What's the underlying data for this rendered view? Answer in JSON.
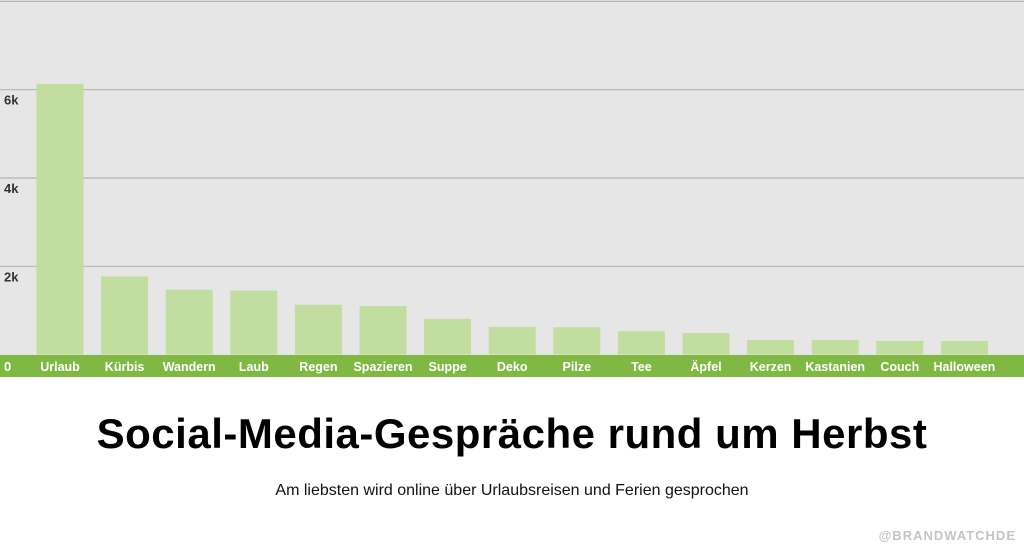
{
  "chart_data": {
    "type": "bar",
    "title": "Social-Media-Gespräche rund um Herbst",
    "subtitle": "Am liebsten wird online über Urlaubsreisen und Ferien gesprochen",
    "xlabel": "",
    "ylabel": "",
    "categories": [
      "Urlaub",
      "Kürbis",
      "Wandern",
      "Laub",
      "Regen",
      "Spazieren",
      "Suppe",
      "Deko",
      "Pilze",
      "Tee",
      "Äpfel",
      "Kerzen",
      "Kastanien",
      "Couch",
      "Halloween"
    ],
    "values": [
      6130,
      1770,
      1470,
      1450,
      1130,
      1100,
      810,
      630,
      620,
      530,
      490,
      330,
      330,
      310,
      310
    ],
    "ylim": [
      0,
      8000
    ],
    "yticks": [
      0,
      2000,
      4000,
      6000,
      8000
    ],
    "ytick_labels": [
      "0",
      "2k",
      "4k",
      "6k",
      ""
    ],
    "grid": true,
    "colors": {
      "bar": "#c1dea0",
      "axis_band": "#7fb843",
      "background": "#e6e6e6",
      "grid": "#b5b5b5"
    }
  },
  "watermark": "@BRANDWATCHDE"
}
